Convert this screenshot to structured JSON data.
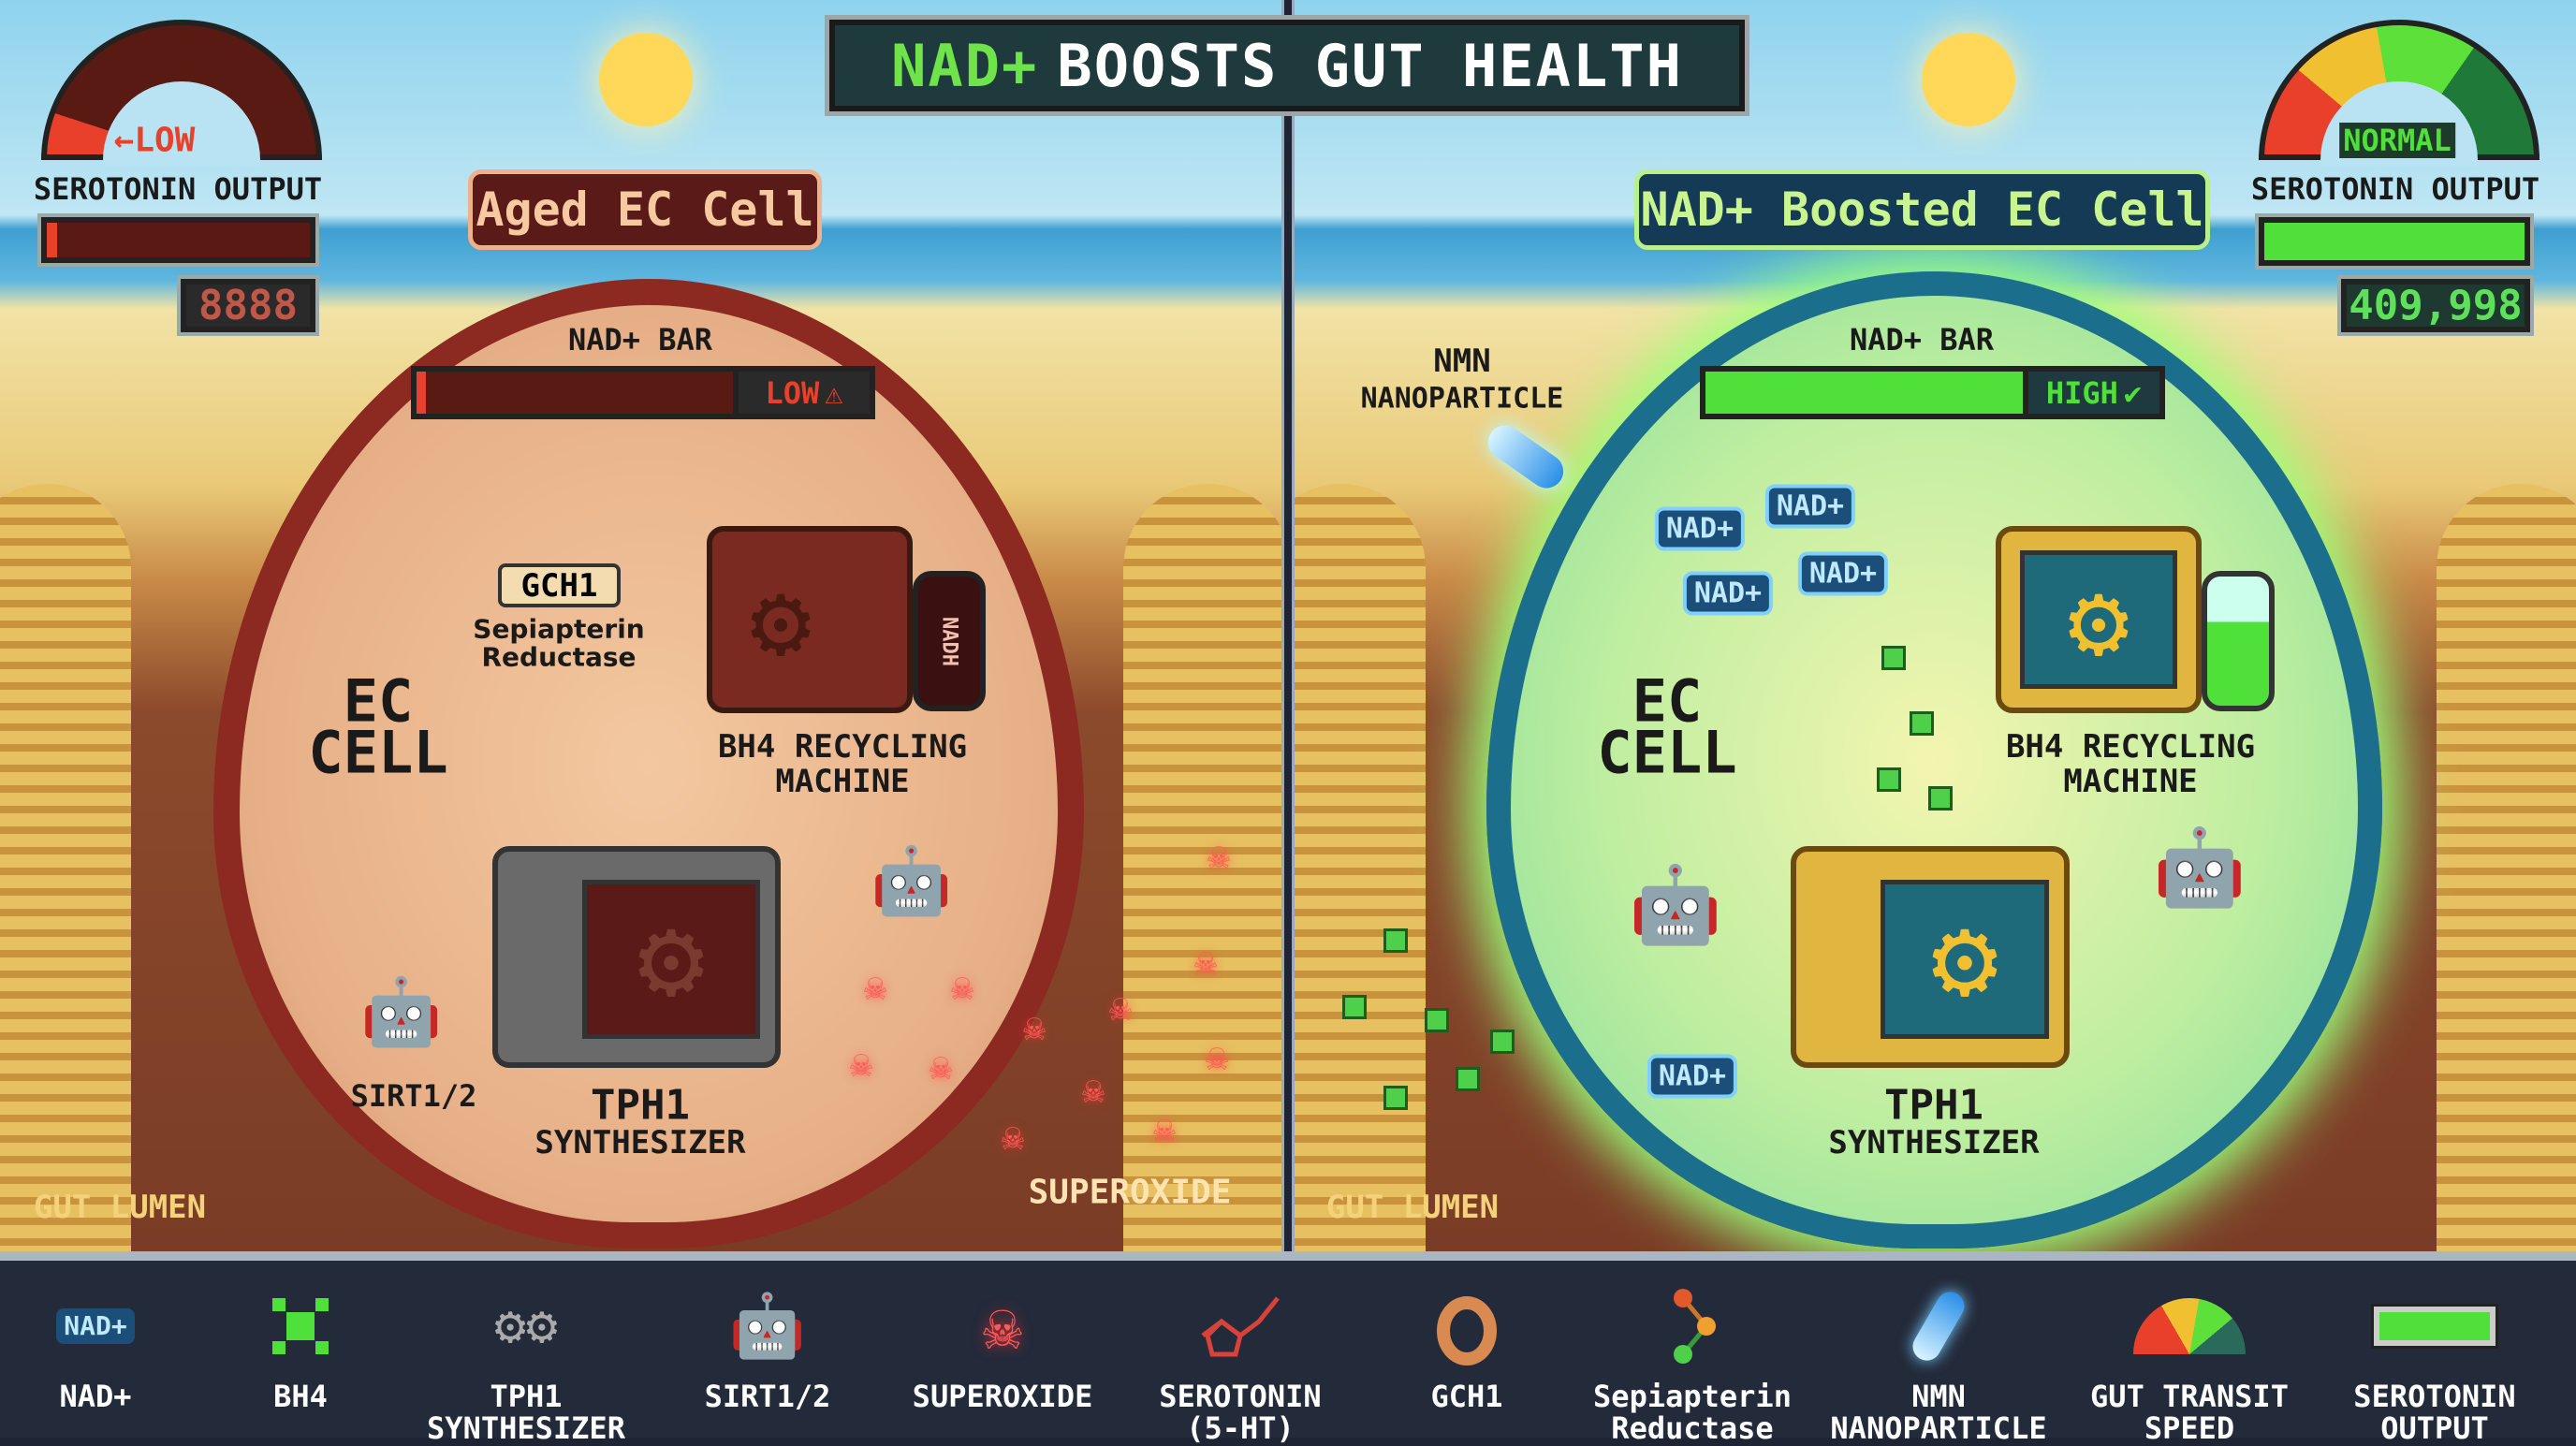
{
  "title": {
    "highlight": "NAD+",
    "rest": "BOOSTS GUT HEALTH"
  },
  "left": {
    "panel_title": "Aged EC Cell",
    "gauge": {
      "label": "LOW",
      "level": 0.1
    },
    "serotonin_label": "SEROTONIN OUTPUT",
    "serotonin_fill": 0.04,
    "counter": "8888",
    "nad_bar": {
      "label": "NAD+ BAR",
      "status": "LOW",
      "status_icon": "warning-icon",
      "fill": 0.03
    },
    "gch1": "GCH1",
    "sepiapterin": [
      "Sepiapterin",
      "Reductase"
    ],
    "tank_label": "NADH",
    "machine": [
      "BH4 RECYCLING",
      "MACHINE"
    ],
    "ec_cell": [
      "EC",
      "CELL"
    ],
    "sirt": "SIRT1/2",
    "tph1": [
      "TPH1",
      "SYNTHESIZER"
    ],
    "superoxide": "SUPEROXIDE",
    "gut_lumen": "GUT LUMEN"
  },
  "right": {
    "panel_title": "NAD+ Boosted EC Cell",
    "gauge": {
      "label": "NORMAL",
      "level": 0.65
    },
    "serotonin_label": "SEROTONIN OUTPUT",
    "serotonin_fill": 1.0,
    "counter": "409,998",
    "nad_bar": {
      "label": "NAD+ BAR",
      "status": "HIGH",
      "status_icon": "check-icon",
      "fill": 1.0
    },
    "nmn": [
      "NMN",
      "NANOPARTICLE"
    ],
    "chips": [
      "NAD+",
      "NAD+",
      "NAD+",
      "NAD+",
      "NAD+"
    ],
    "machine": [
      "BH4 RECYCLING",
      "MACHINE"
    ],
    "ec_cell": [
      "EC",
      "CELL"
    ],
    "tph1": [
      "TPH1",
      "SYNTHESIZER"
    ],
    "gut_lumen": "GUT LUMEN"
  },
  "legend": [
    {
      "icon": "nad-chip-icon",
      "label": [
        "NAD+"
      ],
      "chip": "NAD+"
    },
    {
      "icon": "bh4-molecule-icon",
      "label": [
        "BH4"
      ]
    },
    {
      "icon": "gears-icon",
      "label": [
        "TPH1",
        "SYNTHESIZER"
      ]
    },
    {
      "icon": "robot-icon",
      "label": [
        "SIRT1/2"
      ]
    },
    {
      "icon": "skull-icon",
      "label": [
        "SUPEROXIDE"
      ]
    },
    {
      "icon": "serotonin-molecule-icon",
      "label": [
        "SEROTONIN",
        "(5-HT)"
      ]
    },
    {
      "icon": "gch1-enzyme-icon",
      "label": [
        "GCH1"
      ]
    },
    {
      "icon": "sepiapterin-molecule-icon",
      "label": [
        "Sepiapterin",
        "Reductase"
      ]
    },
    {
      "icon": "capsule-icon",
      "label": [
        "NMN",
        "NANOPARTICLE"
      ]
    },
    {
      "icon": "speed-gauge-icon",
      "label": [
        "GUT TRANSIT",
        "SPEED"
      ]
    },
    {
      "icon": "battery-bar-icon",
      "label": [
        "SEROTONIN",
        "OUTPUT"
      ]
    }
  ],
  "colors": {
    "low": "#e8402a",
    "high": "#4fe03a",
    "aged_membrane": "#8c2a22",
    "boost_membrane": "#1c6f8c"
  }
}
